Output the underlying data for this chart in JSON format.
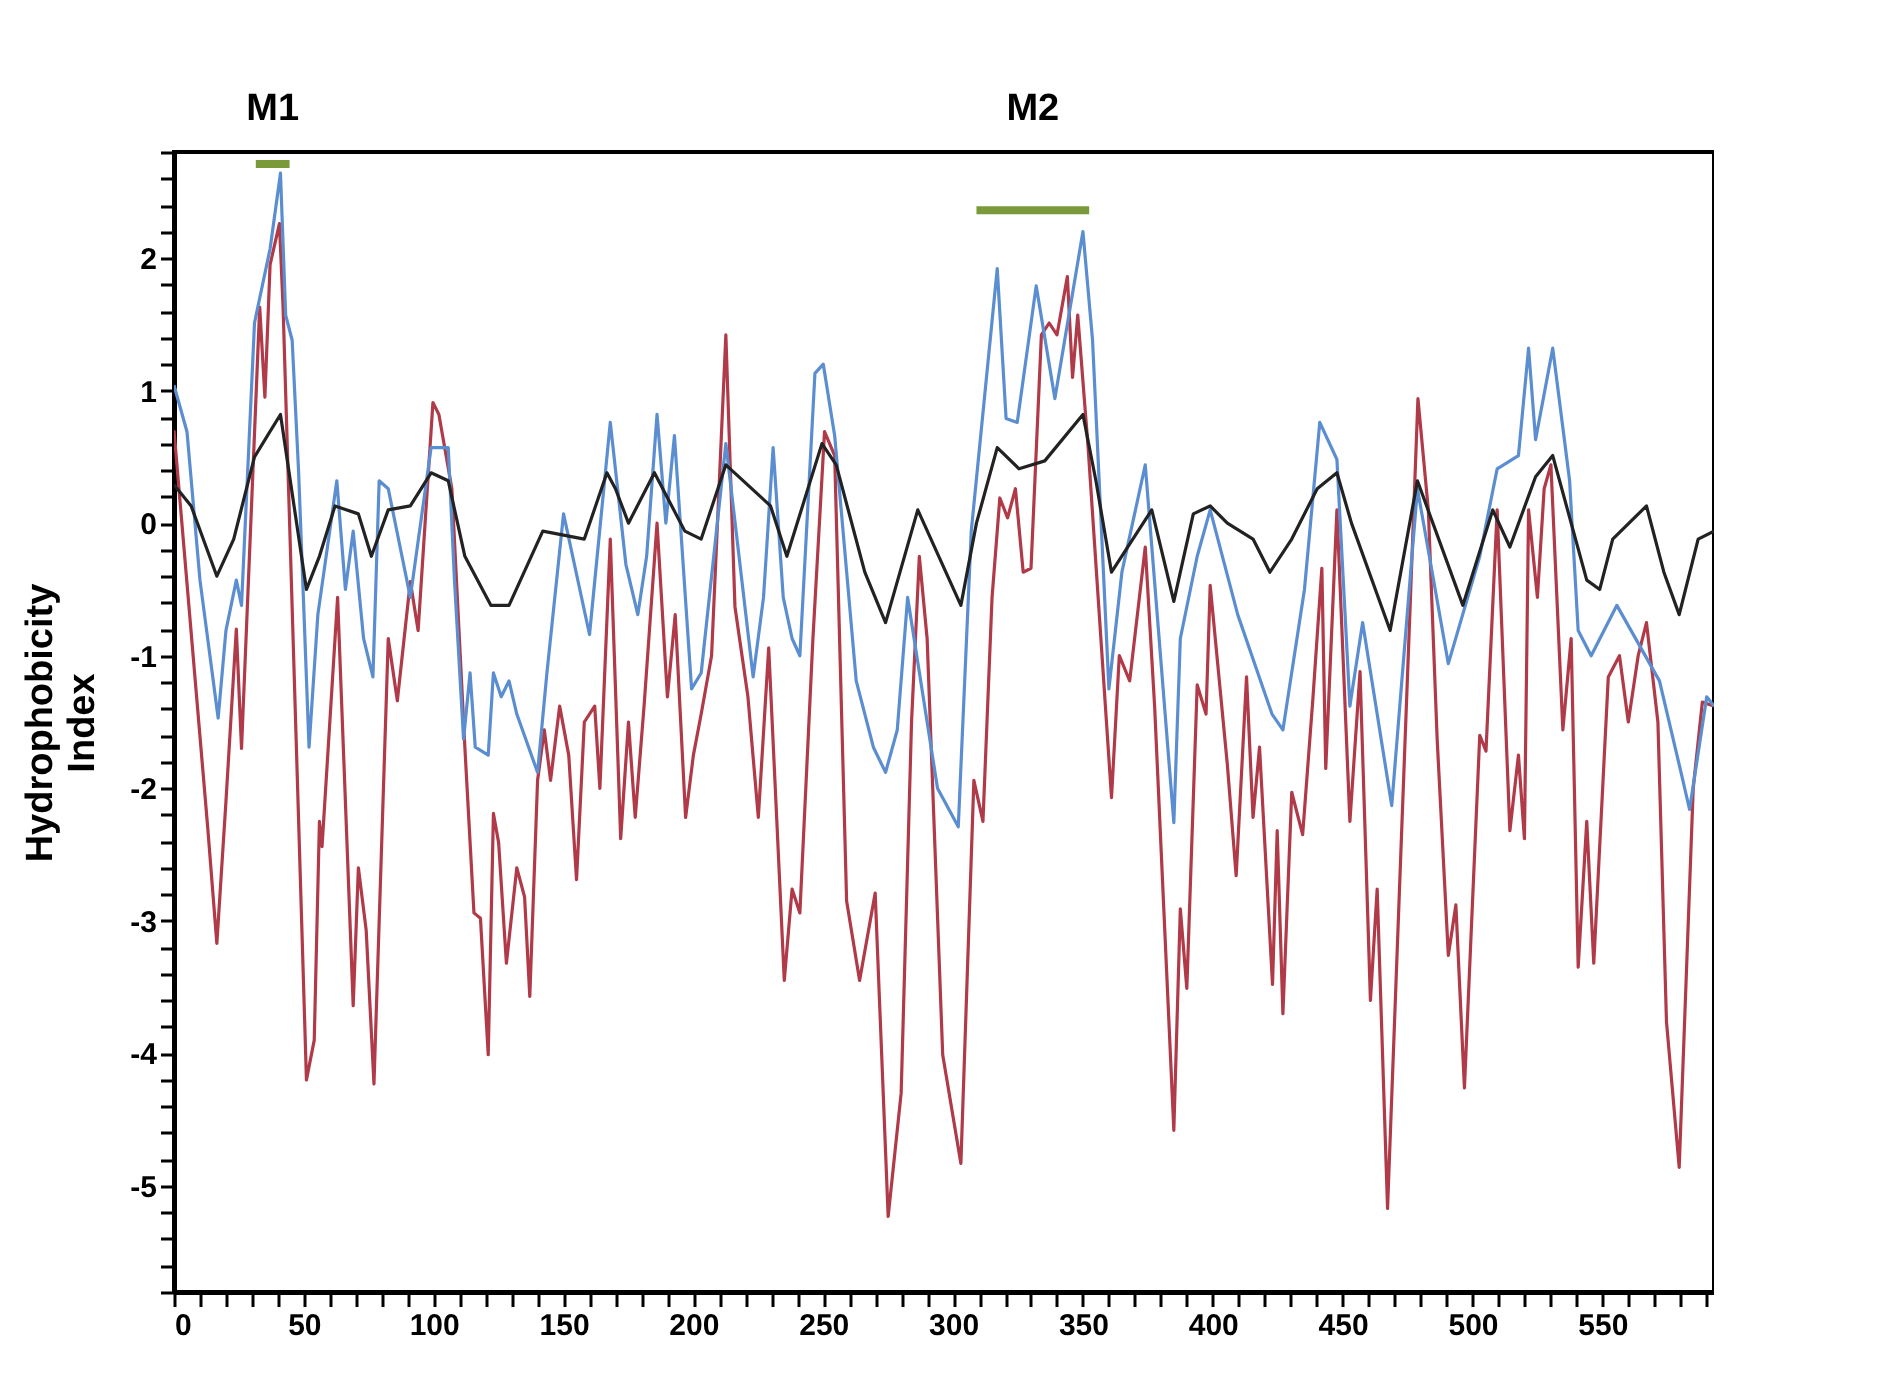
{
  "chart_data": {
    "type": "line",
    "ylabel": "Hydrophobicity Index",
    "xlim": [
      0,
      593
    ],
    "ylim": [
      -5.8,
      2.8
    ],
    "xticks": [
      0,
      {
        "value": 10,
        "label": null
      },
      {
        "value": 20,
        "label": null
      },
      {
        "value": 30,
        "label": null
      },
      {
        "value": 40,
        "label": null
      },
      50,
      {
        "value": 60,
        "label": null
      },
      {
        "value": 70,
        "label": null
      },
      {
        "value": 80,
        "label": null
      },
      {
        "value": 90,
        "label": null
      },
      100,
      {
        "value": 110,
        "label": null
      },
      {
        "value": 120,
        "label": null
      },
      {
        "value": 130,
        "label": null
      },
      {
        "value": 140,
        "label": null
      },
      150,
      {
        "value": 160,
        "label": null
      },
      {
        "value": 170,
        "label": null
      },
      {
        "value": 180,
        "label": null
      },
      {
        "value": 190,
        "label": null
      },
      200,
      {
        "value": 210,
        "label": null
      },
      {
        "value": 220,
        "label": null
      },
      {
        "value": 230,
        "label": null
      },
      {
        "value": 240,
        "label": null
      },
      250,
      {
        "value": 260,
        "label": null
      },
      {
        "value": 270,
        "label": null
      },
      {
        "value": 280,
        "label": null
      },
      {
        "value": 290,
        "label": null
      },
      300,
      {
        "value": 310,
        "label": null
      },
      {
        "value": 320,
        "label": null
      },
      {
        "value": 330,
        "label": null
      },
      {
        "value": 340,
        "label": null
      },
      350,
      {
        "value": 360,
        "label": null
      },
      {
        "value": 370,
        "label": null
      },
      {
        "value": 380,
        "label": null
      },
      {
        "value": 390,
        "label": null
      },
      400,
      {
        "value": 410,
        "label": null
      },
      {
        "value": 420,
        "label": null
      },
      {
        "value": 430,
        "label": null
      },
      {
        "value": 440,
        "label": null
      },
      450,
      {
        "value": 460,
        "label": null
      },
      {
        "value": 470,
        "label": null
      },
      {
        "value": 480,
        "label": null
      },
      {
        "value": 490,
        "label": null
      },
      500,
      {
        "value": 510,
        "label": null
      },
      {
        "value": 520,
        "label": null
      },
      {
        "value": 530,
        "label": null
      },
      {
        "value": 540,
        "label": null
      },
      550,
      {
        "value": 560,
        "label": null
      },
      {
        "value": 570,
        "label": null
      },
      {
        "value": 580,
        "label": null
      },
      {
        "value": 590,
        "label": null
      }
    ],
    "yticks": [
      {
        "value": -5.8,
        "label": null
      },
      {
        "value": -5.6,
        "label": null
      },
      {
        "value": -5.4,
        "label": null
      },
      {
        "value": -5.2,
        "label": null
      },
      -5,
      {
        "value": -4.8,
        "label": null
      },
      {
        "value": -4.6,
        "label": null
      },
      {
        "value": -4.4,
        "label": null
      },
      {
        "value": -4.2,
        "label": null
      },
      -4,
      {
        "value": -3.8,
        "label": null
      },
      {
        "value": -3.6,
        "label": null
      },
      {
        "value": -3.4,
        "label": null
      },
      {
        "value": -3.2,
        "label": null
      },
      -3,
      {
        "value": -2.8,
        "label": null
      },
      {
        "value": -2.6,
        "label": null
      },
      {
        "value": -2.4,
        "label": null
      },
      {
        "value": -2.2,
        "label": null
      },
      -2,
      {
        "value": -1.8,
        "label": null
      },
      {
        "value": -1.6,
        "label": null
      },
      {
        "value": -1.4,
        "label": null
      },
      {
        "value": -1.2,
        "label": null
      },
      -1,
      {
        "value": -0.8,
        "label": null
      },
      {
        "value": -0.6,
        "label": null
      },
      {
        "value": -0.4,
        "label": null
      },
      {
        "value": -0.2,
        "label": null
      },
      0,
      {
        "value": 0.2,
        "label": null
      },
      {
        "value": 0.4,
        "label": null
      },
      {
        "value": 0.6,
        "label": null
      },
      {
        "value": 0.8,
        "label": null
      },
      1,
      {
        "value": 1.2,
        "label": null
      },
      {
        "value": 1.4,
        "label": null
      },
      {
        "value": 1.6,
        "label": null
      },
      {
        "value": 1.8,
        "label": null
      },
      2,
      {
        "value": 2.2,
        "label": null
      },
      {
        "value": 2.4,
        "label": null
      },
      {
        "value": 2.6,
        "label": null
      },
      {
        "value": 2.8,
        "label": null
      }
    ],
    "grid": false,
    "marker": "none",
    "line_style": "solid",
    "series": [
      {
        "color": "#b03a48",
        "x": [
          0,
          13,
          16.5,
          20,
          24,
          26,
          33,
          35,
          37,
          40.6,
          42,
          51,
          54,
          56,
          57,
          63,
          69,
          71,
          74,
          77,
          82.5,
          86,
          91,
          94,
          99.7,
          102,
          107,
          112,
          115.5,
          118,
          121,
          123,
          125,
          128,
          132,
          135,
          137,
          140,
          142.6,
          145,
          148.5,
          152,
          155,
          158,
          162,
          164,
          168,
          172,
          175,
          177.6,
          181,
          186,
          190,
          193,
          197,
          200,
          203,
          207,
          212.5,
          216,
          221,
          225,
          229,
          235,
          238,
          241,
          246,
          250.5,
          254.4,
          259,
          264,
          270,
          275,
          280,
          284,
          287,
          290,
          296,
          303,
          308,
          311.5,
          315,
          318,
          321,
          324,
          327,
          330,
          334,
          337,
          340,
          344,
          346,
          348,
          352,
          361,
          364,
          368,
          374,
          377.6,
          385,
          387.5,
          390,
          394,
          397.4,
          399,
          405.6,
          409,
          413,
          415.5,
          418,
          423,
          424.8,
          427,
          430.4,
          434.6,
          438.6,
          442,
          443.5,
          447.8,
          452.8,
          456.7,
          460.7,
          463.3,
          467.3,
          472.2,
          479,
          483,
          486.4,
          490.7,
          493.6,
          496.9,
          502.8,
          505.2,
          509.5,
          514.4,
          517.7,
          520,
          521.6,
          525,
          527.6,
          530.2,
          534.8,
          538,
          540.7,
          544,
          546.7,
          552.3,
          556.6,
          560,
          563.8,
          567,
          571.4,
          574.7,
          579.6,
          585,
          588.5,
          593
        ],
        "values": [
          0.7,
          -2.3,
          -3.17,
          -2.1,
          -0.8,
          -1.7,
          1.63,
          0.95,
          1.95,
          2.26,
          1.63,
          -4.2,
          -3.9,
          -2.25,
          -2.44,
          -0.56,
          -3.64,
          -2.6,
          -3.07,
          -4.23,
          -0.87,
          -1.34,
          -0.44,
          -0.81,
          0.91,
          0.82,
          0.26,
          -1.69,
          -2.94,
          -2.98,
          -4.01,
          -2.19,
          -2.41,
          -3.32,
          -2.6,
          -2.82,
          -3.57,
          -1.94,
          -1.56,
          -1.94,
          -1.38,
          -1.75,
          -2.69,
          -1.5,
          -1.38,
          -2.0,
          -0.12,
          -2.38,
          -1.5,
          -2.22,
          -1.38,
          0.0,
          -1.31,
          -0.69,
          -2.22,
          -1.75,
          -1.44,
          -1.0,
          1.42,
          -0.63,
          -1.31,
          -2.22,
          -0.94,
          -3.45,
          -2.76,
          -2.94,
          -0.88,
          0.69,
          0.51,
          -2.85,
          -3.45,
          -2.79,
          -5.23,
          -4.3,
          -1.5,
          -0.25,
          -0.87,
          -4.01,
          -4.83,
          -1.94,
          -2.25,
          -0.56,
          0.19,
          0.04,
          0.26,
          -0.37,
          -0.34,
          1.42,
          1.51,
          1.42,
          1.86,
          1.1,
          1.57,
          0.57,
          -2.07,
          -1.0,
          -1.19,
          -0.18,
          -1.38,
          -4.58,
          -2.91,
          -3.51,
          -1.22,
          -1.44,
          -0.47,
          -1.82,
          -2.66,
          -1.16,
          -2.22,
          -1.69,
          -3.48,
          -2.32,
          -3.7,
          -2.03,
          -2.35,
          -1.31,
          -0.34,
          -1.85,
          0.1,
          -2.25,
          -1.12,
          -3.6,
          -2.76,
          -5.17,
          -2.6,
          0.94,
          0.1,
          -1.63,
          -3.26,
          -2.88,
          -4.26,
          -1.6,
          -1.72,
          0.1,
          -2.32,
          -1.75,
          -2.38,
          0.1,
          -0.56,
          0.26,
          0.44,
          -1.56,
          -0.87,
          -3.35,
          -2.25,
          -3.32,
          -1.16,
          -1.0,
          -1.5,
          -1.0,
          -0.75,
          -1.5,
          -3.76,
          -4.86,
          -2.0,
          -1.35,
          -1.38
        ]
      },
      {
        "color": "#5b8ed0",
        "x": [
          0,
          5,
          10,
          17,
          20,
          24,
          26,
          31,
          37,
          41,
          43,
          45.5,
          48,
          52,
          55.4,
          62.7,
          66,
          69,
          73,
          76.6,
          79,
          82.5,
          91,
          99,
          105.6,
          108,
          111.5,
          114,
          116,
          121,
          123,
          126,
          129,
          132,
          140,
          143.6,
          150,
          160,
          168,
          174,
          178.6,
          182,
          186,
          189.4,
          192.7,
          199.3,
          203,
          212.5,
          223,
          227,
          230.7,
          234.6,
          238,
          241,
          246.8,
          250,
          254.4,
          262.7,
          269.3,
          274,
          278.5,
          282.5,
          294,
          302,
          307,
          317,
          320.4,
          324.7,
          332,
          339.2,
          350,
          353.7,
          360,
          365,
          374,
          385,
          387.5,
          394,
          399,
          409.6,
          422.8,
          427,
          435.3,
          441.2,
          447.8,
          452.8,
          457.7,
          468.9,
          478.8,
          490.7,
          502.8,
          509.5,
          517.7,
          521.6,
          524.3,
          530.9,
          537.4,
          540.7,
          545.7,
          555.6,
          572,
          580.3,
          583.6,
          590.2,
          593
        ],
        "values": [
          1.04,
          0.69,
          -0.43,
          -1.47,
          -0.81,
          -0.43,
          -0.62,
          1.51,
          2.07,
          2.64,
          1.57,
          1.38,
          0.38,
          -1.69,
          -0.69,
          0.32,
          -0.5,
          -0.06,
          -0.87,
          -1.16,
          0.32,
          0.26,
          -0.56,
          0.57,
          0.57,
          -0.43,
          -1.63,
          -1.13,
          -1.69,
          -1.75,
          -1.13,
          -1.31,
          -1.19,
          -1.44,
          -1.88,
          -1.13,
          0.07,
          -0.84,
          0.76,
          -0.31,
          -0.69,
          -0.25,
          0.82,
          0,
          0.66,
          -1.25,
          -1.13,
          0.6,
          -1.16,
          -0.56,
          0.57,
          -0.56,
          -0.87,
          -1.0,
          1.13,
          1.2,
          0.66,
          -1.19,
          -1.69,
          -1.88,
          -1.56,
          -0.56,
          -2.0,
          -2.29,
          -0.06,
          1.92,
          0.79,
          0.76,
          1.79,
          0.94,
          2.2,
          1.38,
          -1.25,
          -0.37,
          0.44,
          -2.26,
          -0.87,
          -0.25,
          0.1,
          -0.69,
          -1.44,
          -1.56,
          -0.5,
          0.76,
          0.48,
          -1.38,
          -0.75,
          -2.13,
          0.26,
          -1.06,
          -0.25,
          0.41,
          0.51,
          1.32,
          0.63,
          1.32,
          0.32,
          -0.81,
          -1.0,
          -0.62,
          -1.19,
          -1.88,
          -2.16,
          -1.31,
          -1.38
        ]
      },
      {
        "color": "#222222",
        "x": [
          0,
          6.6,
          16.5,
          23,
          31,
          36,
          41,
          51,
          56,
          62,
          71,
          76,
          82.5,
          91,
          99,
          105.6,
          112,
          122,
          129,
          142,
          158,
          166.7,
          170,
          175,
          185,
          196.7,
          203,
          212.5,
          229.7,
          236,
          249.5,
          255,
          266,
          274,
          286.4,
          303,
          309,
          317,
          325.4,
          335.3,
          350,
          355,
          361,
          376.5,
          385,
          392.5,
          399,
          405.6,
          415.5,
          422,
          430.4,
          440.2,
          447.8,
          453.4,
          468.3,
          478.8,
          496.3,
          507.8,
          514.4,
          524.3,
          530.9,
          544,
          549,
          554,
          567,
          573.7,
          579.6,
          586.9,
          593
        ],
        "values": [
          0.29,
          0.13,
          -0.4,
          -0.12,
          0.5,
          0.66,
          0.82,
          -0.5,
          -0.25,
          0.13,
          0.07,
          -0.25,
          0.1,
          0.13,
          0.38,
          0.32,
          -0.25,
          -0.62,
          -0.62,
          -0.06,
          -0.12,
          0.38,
          0.26,
          0,
          0.38,
          -0.06,
          -0.12,
          0.44,
          0.13,
          -0.25,
          0.6,
          0.44,
          -0.37,
          -0.75,
          0.1,
          -0.62,
          0,
          0.57,
          0.41,
          0.47,
          0.82,
          0.32,
          -0.37,
          0.1,
          -0.59,
          0.07,
          0.13,
          0,
          -0.12,
          -0.37,
          -0.12,
          0.26,
          0.38,
          0,
          -0.81,
          0.32,
          -0.62,
          0.1,
          -0.18,
          0.35,
          0.51,
          -0.43,
          -0.5,
          -0.12,
          0.13,
          -0.37,
          -0.69,
          -0.12,
          -0.06
        ]
      },
      {
        "name": "M1",
        "color": "#7a9a3a",
        "x": [
          31.5,
          44.5
        ],
        "values": [
          2.71,
          2.71
        ]
      },
      {
        "name": "M2",
        "color": "#7a9a3a",
        "x": [
          309,
          352.4
        ],
        "values": [
          2.36,
          2.36
        ]
      }
    ]
  }
}
